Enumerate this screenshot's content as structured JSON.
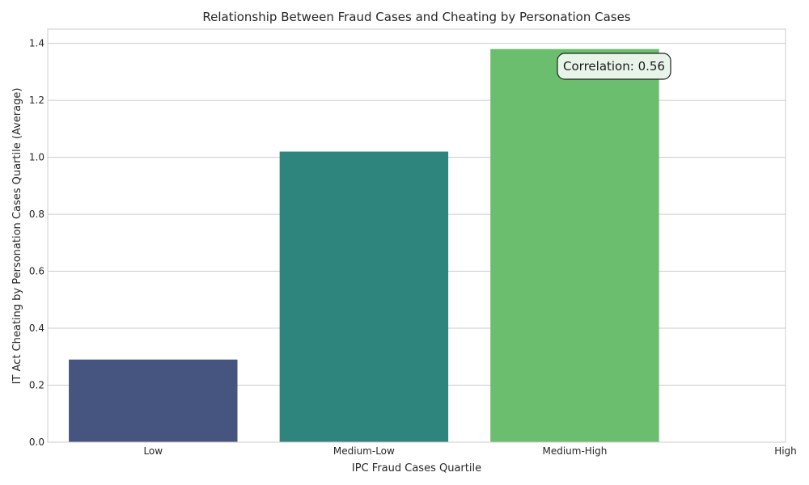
{
  "chart_data": {
    "type": "bar",
    "title": "Relationship Between Fraud Cases and Cheating by Personation Cases",
    "xlabel": "IPC Fraud Cases Quartile",
    "ylabel": "IT Act Cheating by Personation Cases Quartile (Average)",
    "categories": [
      "Low",
      "Medium-Low",
      "Medium-High",
      "High"
    ],
    "values": [
      0.29,
      1.02,
      1.38,
      null
    ],
    "bar_colors": [
      "#46557f",
      "#2e857e",
      "#6bbe6e",
      null
    ],
    "ylim": [
      0,
      1.45
    ],
    "yticks": [
      0.0,
      0.2,
      0.4,
      0.6,
      0.8,
      1.0,
      1.2,
      1.4
    ],
    "ytick_labels": [
      "0.0",
      "0.2",
      "0.4",
      "0.6",
      "0.8",
      "1.0",
      "1.2",
      "1.4"
    ],
    "grid": true,
    "annotation": {
      "text": "Correlation: 0.56",
      "background": "#e8f4ea"
    }
  }
}
